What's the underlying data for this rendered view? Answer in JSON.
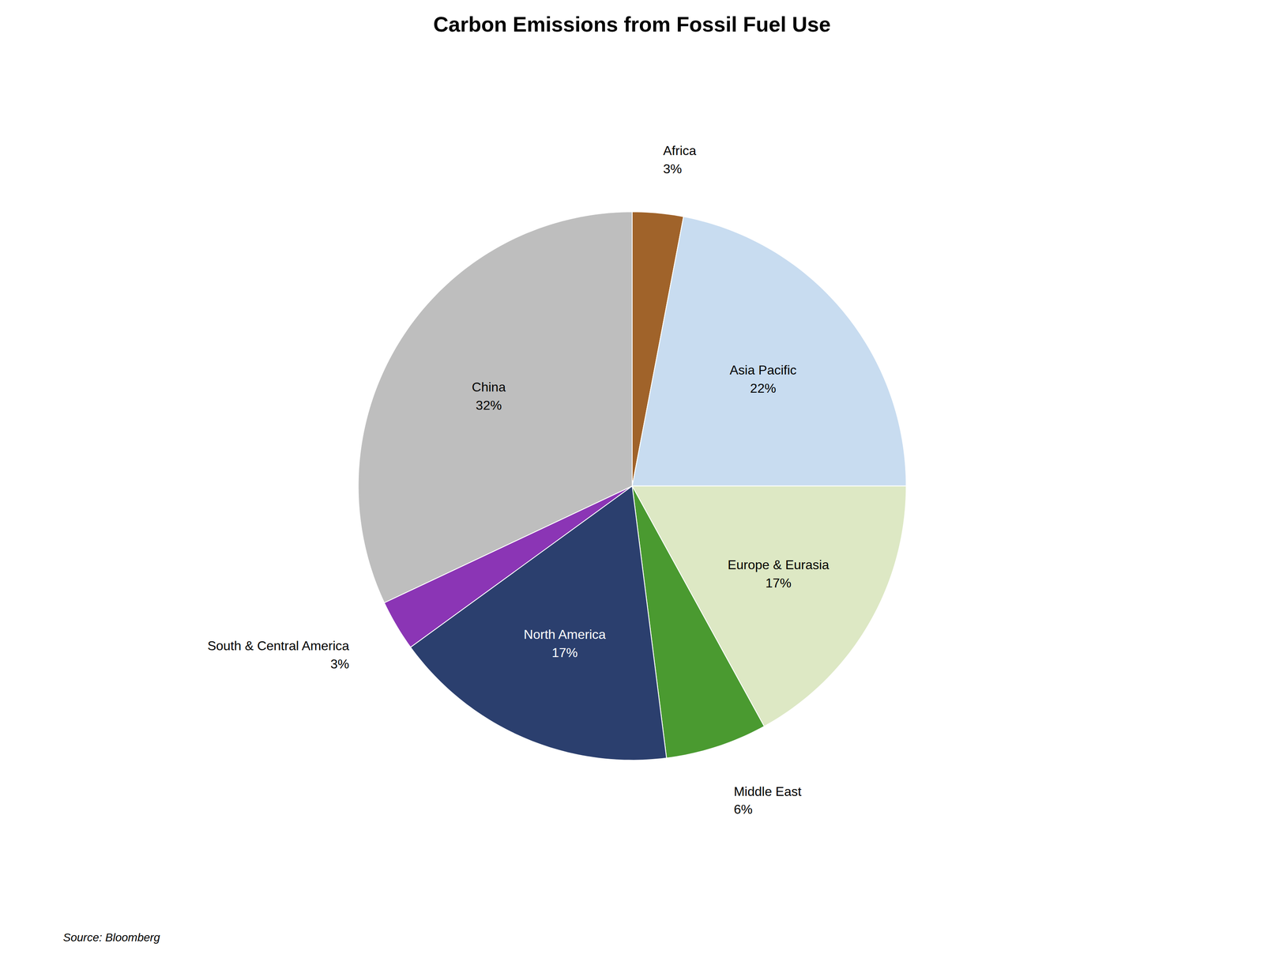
{
  "chart_data": {
    "type": "pie",
    "title": "Carbon Emissions from Fossil Fuel Use",
    "categories": [
      "Africa",
      "Asia Pacific",
      "Europe & Eurasia",
      "Middle East",
      "North America",
      "South & Central America",
      "China"
    ],
    "values": [
      3,
      22,
      17,
      6,
      17,
      3,
      32
    ],
    "value_labels": [
      "3%",
      "22%",
      "17%",
      "6%",
      "17%",
      "3%",
      "32%"
    ],
    "colors": [
      "#A0632A",
      "#C8DCF0",
      "#DDE8C4",
      "#4A9A30",
      "#2B3F6E",
      "#8B35B5",
      "#BEBEBE"
    ],
    "annotations": [
      "Source: Bloomberg"
    ]
  }
}
